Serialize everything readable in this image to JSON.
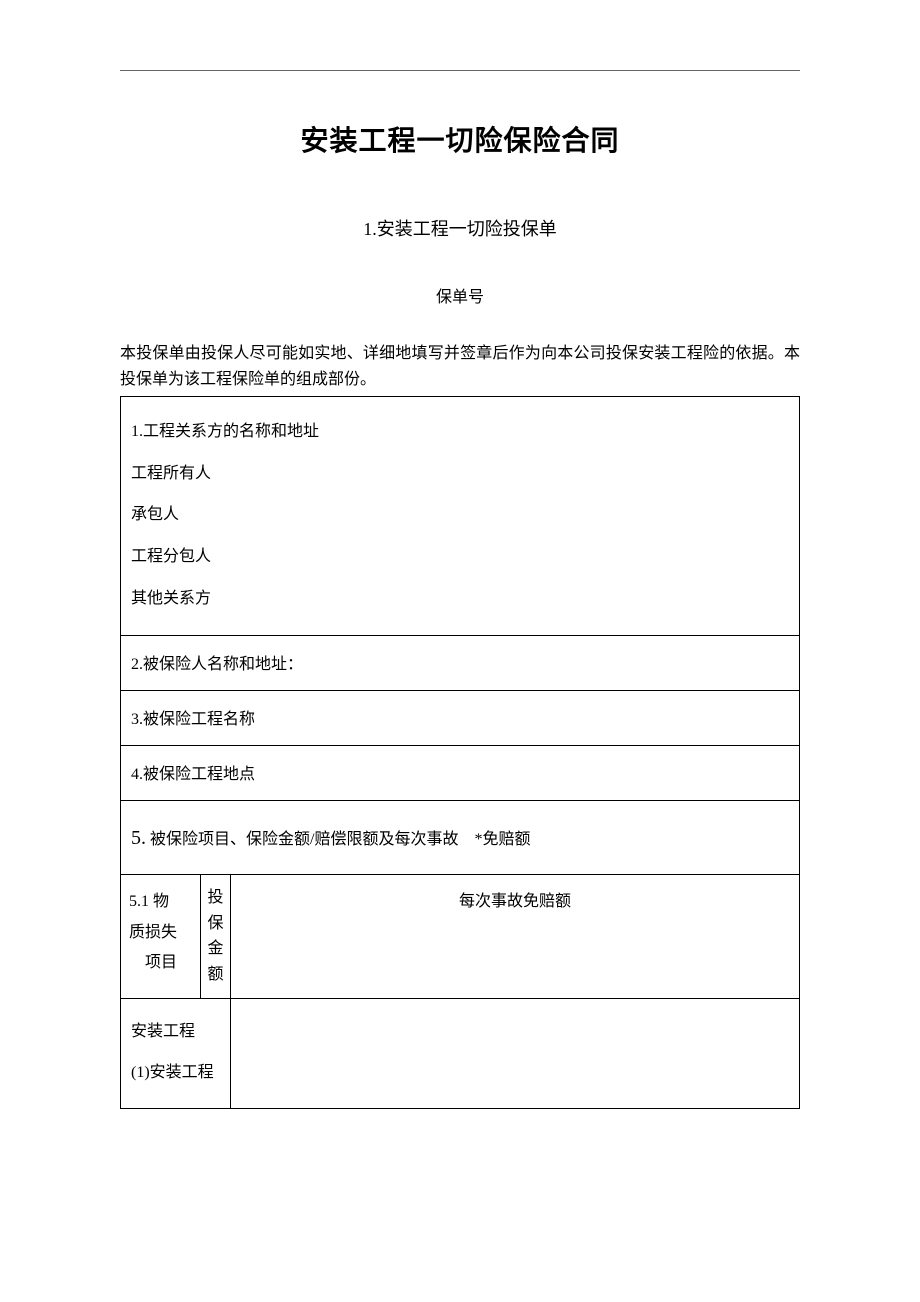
{
  "title": "安装工程一切险保险合同",
  "subtitle": "1.安装工程一切险投保单",
  "policy_no_label": "保单号",
  "intro": "本投保单由投保人尽可能如实地、详细地填写并签章后作为向本公司投保安装工程险的依据。本投保单为该工程保险单的组成部份。",
  "section1": {
    "heading": "1.工程关系方的名称和地址",
    "owner": "工程所有人",
    "contractor": "承包人",
    "subcontractor": "工程分包人",
    "other": "其他关系方"
  },
  "section2": "2.被保险人名称和地址：",
  "section3": "3.被保险工程名称",
  "section4": "4.被保险工程地点",
  "section5": {
    "num": "5.",
    "rest": " 被保险项目、保险金额/赔偿限额及每次事故　*免赔额"
  },
  "row51": {
    "colA_line1": "5.1 物",
    "colA_line2": "质损失",
    "colA_line3": "　项目",
    "colB": "投保金额",
    "colC": "每次事故免赔额"
  },
  "row_install": {
    "line1": "安装工程",
    "line2": "(1)安装工程"
  }
}
